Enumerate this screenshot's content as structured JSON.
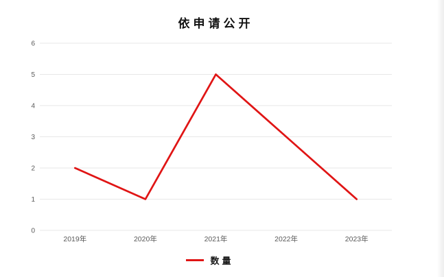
{
  "title": "依申请公开",
  "legend": {
    "label": "数量",
    "position": "bottom"
  },
  "colors": {
    "line": "#e01515",
    "grid": "#e7e7e7",
    "axis_text": "#595959",
    "title_text": "#111111",
    "background": "#ffffff"
  },
  "chart_data": {
    "type": "line",
    "title": "依申请公开",
    "categories": [
      "2019年",
      "2020年",
      "2021年",
      "2022年",
      "2023年"
    ],
    "series": [
      {
        "name": "数量",
        "values": [
          2,
          1,
          5,
          3,
          1
        ],
        "color": "#e01515"
      }
    ],
    "xlabel": "",
    "ylabel": "",
    "ylim": [
      0,
      6
    ],
    "ytick_step": 1,
    "yticks": [
      0,
      1,
      2,
      3,
      4,
      5,
      6
    ],
    "grid": true,
    "legend_position": "bottom"
  }
}
